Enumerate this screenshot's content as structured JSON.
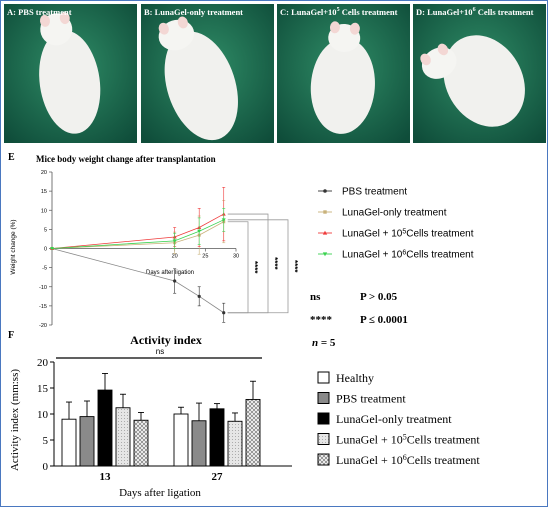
{
  "panels": [
    {
      "label": "A: PBS treatment",
      "sup": "",
      "after": ""
    },
    {
      "label": "B: LunaGel-only treatment",
      "sup": "",
      "after": ""
    },
    {
      "label": "C: LunaGel+10",
      "sup": "5",
      "after": " Cells treatment"
    },
    {
      "label": "D: LunaGel+10",
      "sup": "6",
      "after": " Cells treatment"
    }
  ],
  "colors": {
    "photo_bg_dark": "#0f4d3a",
    "photo_bg_light": "#2f8c66",
    "pbs": "#333333",
    "lunagel_only": "#c9b27a",
    "cells5": "#ef3b3b",
    "cells6": "#39d24e"
  },
  "chart_data": [
    {
      "type": "line",
      "panel_letter": "E",
      "title": "Mice body weight change after transplantation",
      "xlabel": "Days after ligation",
      "ylabel": "Weight change (%)",
      "xlim": [
        0,
        30
      ],
      "ylim": [
        -20,
        20
      ],
      "x_ticks": [
        "20",
        "25",
        "30"
      ],
      "y_ticks": [
        "-20",
        "-15",
        "-10",
        "-5",
        "0",
        "5",
        "10",
        "15",
        "20"
      ],
      "series": [
        {
          "name": "PBS treatment",
          "sup": "",
          "after": "",
          "x": [
            0,
            20,
            24,
            28
          ],
          "y": [
            0,
            -8.5,
            -12.5,
            -16.8
          ],
          "err": [
            0,
            3.2,
            2.5,
            2.5
          ]
        },
        {
          "name": "LunaGel-only treatment",
          "sup": "",
          "after": "",
          "x": [
            0,
            20,
            24,
            28
          ],
          "y": [
            0,
            1.5,
            3.5,
            7.0
          ],
          "err": [
            0,
            2.8,
            5.0,
            5.5
          ]
        },
        {
          "name": "LunaGel + 10",
          "sup": "5",
          "after": "Cells treatment",
          "x": [
            0,
            20,
            24,
            28
          ],
          "y": [
            0,
            3.0,
            5.5,
            9.0
          ],
          "err": [
            0,
            2.5,
            5.0,
            7.0
          ]
        },
        {
          "name": "LunaGel + 10",
          "sup": "6",
          "after": "Cells treatment",
          "x": [
            0,
            20,
            24,
            28
          ],
          "y": [
            0,
            2.0,
            4.5,
            7.5
          ],
          "err": [
            0,
            2.0,
            3.5,
            3.0
          ]
        }
      ],
      "significance": [
        "****",
        "****",
        "****"
      ],
      "legend_position": "right",
      "stats_notes": [
        {
          "key": "ns",
          "text": "P > 0.05"
        },
        {
          "key": "****",
          "text": "P ≤ 0.0001"
        }
      ],
      "n_label": {
        "var": "n",
        "text": " = 5"
      }
    },
    {
      "type": "bar",
      "panel_letter": "F",
      "title": "Activity index",
      "xlabel": "Days after ligation",
      "ylabel": "Activity index (mm:ss)",
      "ylim": [
        0,
        20
      ],
      "y_ticks": [
        "0",
        "5",
        "10",
        "15",
        "20"
      ],
      "categories": [
        "13",
        "27"
      ],
      "series": [
        {
          "name": "Healthy",
          "sup": "",
          "after": "",
          "values": [
            9.0,
            10.0
          ],
          "err": [
            3.3,
            1.3
          ]
        },
        {
          "name": "PBS treatment",
          "sup": "",
          "after": "",
          "values": [
            9.5,
            8.7
          ],
          "err": [
            3.0,
            3.4
          ]
        },
        {
          "name": "LunaGel-only treatment",
          "sup": "",
          "after": "",
          "values": [
            14.6,
            11.0
          ],
          "err": [
            3.2,
            1.0
          ]
        },
        {
          "name": "LunaGel + 10",
          "sup": "5",
          "after": "Cells treatment",
          "values": [
            11.2,
            8.6
          ],
          "err": [
            2.6,
            1.6
          ]
        },
        {
          "name": "LunaGel + 10",
          "sup": "6",
          "after": "Cells treatment",
          "values": [
            8.8,
            12.8
          ],
          "err": [
            1.5,
            3.5
          ]
        }
      ],
      "significance": "ns",
      "legend_position": "right"
    }
  ]
}
